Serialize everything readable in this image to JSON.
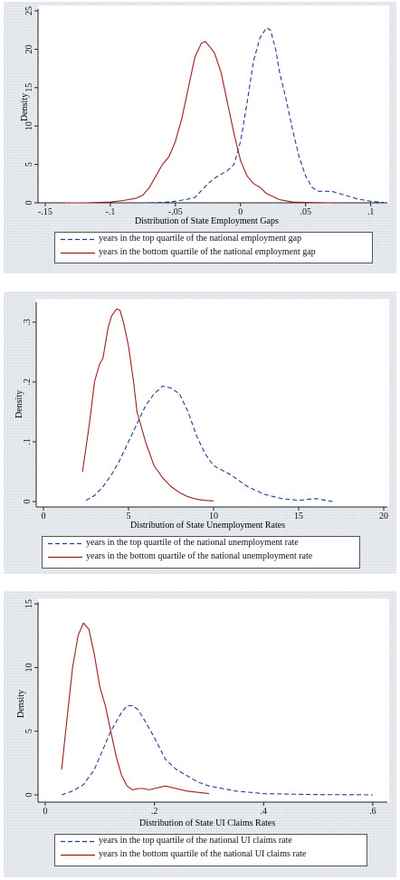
{
  "colors": {
    "top": "#1f3f8f",
    "bottom": "#9a2020"
  },
  "chart_data": [
    {
      "type": "line",
      "xlabel": "Distribution of State Employment Gaps",
      "ylabel": "Density",
      "xlim": [
        -0.15,
        0.11
      ],
      "ylim": [
        0,
        25
      ],
      "xticks": [
        "-.15",
        "-.1",
        "-.05",
        "0",
        ".05",
        ".1"
      ],
      "xtick_values": [
        -0.15,
        -0.1,
        -0.05,
        0,
        0.05,
        0.1
      ],
      "yticks": [
        "0",
        "5",
        "10",
        "15",
        "20",
        "25"
      ],
      "ytick_values": [
        0,
        5,
        10,
        15,
        20,
        25
      ],
      "grid": false,
      "legend_position": "bottom",
      "series": [
        {
          "name": "years in the top quartile of the national employment gap",
          "style": "dashed",
          "x": [
            -0.075,
            -0.06,
            -0.05,
            -0.04,
            -0.035,
            -0.025,
            -0.02,
            -0.01,
            -0.005,
            0.0,
            0.005,
            0.01,
            0.015,
            0.02,
            0.023,
            0.027,
            0.03,
            0.035,
            0.04,
            0.045,
            0.05,
            0.055,
            0.06,
            0.065,
            0.07,
            0.08,
            0.09,
            0.1,
            0.11
          ],
          "y": [
            0,
            0.05,
            0.2,
            0.5,
            0.7,
            2.5,
            3.2,
            4.2,
            5.0,
            8.0,
            13.0,
            18.5,
            21.5,
            22.8,
            22.5,
            20.0,
            17.0,
            13.5,
            9.5,
            6.0,
            3.5,
            2.0,
            1.5,
            1.5,
            1.5,
            1.0,
            0.5,
            0.2,
            0.05
          ]
        },
        {
          "name": "years in the bottom quartile of the national employment gap",
          "style": "solid",
          "x": [
            -0.135,
            -0.12,
            -0.1,
            -0.09,
            -0.08,
            -0.075,
            -0.07,
            -0.065,
            -0.06,
            -0.055,
            -0.05,
            -0.045,
            -0.04,
            -0.035,
            -0.03,
            -0.027,
            -0.023,
            -0.02,
            -0.015,
            -0.01,
            -0.005,
            0.0,
            0.005,
            0.01,
            0.015,
            0.02,
            0.03,
            0.04,
            0.05,
            0.07
          ],
          "y": [
            0,
            0,
            0.1,
            0.3,
            0.6,
            1.0,
            2.0,
            3.5,
            5.0,
            6.0,
            8.0,
            11.0,
            15.0,
            19.0,
            20.8,
            21.0,
            20.2,
            19.5,
            17.0,
            13.0,
            9.0,
            5.5,
            3.5,
            2.5,
            2.0,
            1.2,
            0.4,
            0.1,
            0.05,
            0
          ]
        }
      ]
    },
    {
      "type": "line",
      "xlabel": "Distribution of State Unemployment Rates",
      "ylabel": "Density",
      "xlim": [
        0,
        20
      ],
      "ylim": [
        0,
        0.33
      ],
      "xticks": [
        "0",
        "5",
        "10",
        "15",
        "20"
      ],
      "xtick_values": [
        0,
        5,
        10,
        15,
        20
      ],
      "yticks": [
        "0",
        ".1",
        ".2",
        ".3"
      ],
      "ytick_values": [
        0,
        0.1,
        0.2,
        0.3
      ],
      "grid": false,
      "legend_position": "bottom",
      "series": [
        {
          "name": "years in the top quartile of the national unemployment rate",
          "style": "dashed",
          "x": [
            2.5,
            3.0,
            3.5,
            4.0,
            4.5,
            5.0,
            5.5,
            6.0,
            6.5,
            7.0,
            7.5,
            8.0,
            8.5,
            9.0,
            9.5,
            10.0,
            11.0,
            12.0,
            13.0,
            14.0,
            15.0,
            16.0,
            17.0
          ],
          "y": [
            0.002,
            0.01,
            0.025,
            0.045,
            0.07,
            0.1,
            0.13,
            0.16,
            0.18,
            0.193,
            0.19,
            0.18,
            0.15,
            0.11,
            0.08,
            0.06,
            0.045,
            0.025,
            0.012,
            0.005,
            0.002,
            0.005,
            0.0
          ]
        },
        {
          "name": "years in the bottom quartile of the national unemployment rate",
          "style": "solid",
          "x": [
            2.3,
            2.7,
            3.0,
            3.3,
            3.5,
            3.8,
            4.0,
            4.3,
            4.5,
            4.7,
            5.0,
            5.3,
            5.5,
            6.0,
            6.5,
            7.0,
            7.5,
            8.0,
            8.5,
            9.0,
            9.5,
            10.0
          ],
          "y": [
            0.05,
            0.13,
            0.2,
            0.23,
            0.24,
            0.29,
            0.31,
            0.322,
            0.32,
            0.3,
            0.26,
            0.2,
            0.15,
            0.1,
            0.06,
            0.04,
            0.025,
            0.015,
            0.008,
            0.004,
            0.002,
            0.001
          ]
        }
      ]
    },
    {
      "type": "line",
      "xlabel": "Distribution of State UI Claims Rates",
      "ylabel": "Density",
      "xlim": [
        0,
        0.62
      ],
      "ylim": [
        0,
        15
      ],
      "xticks": [
        "0",
        ".2",
        ".4",
        ".6"
      ],
      "xtick_values": [
        0,
        0.2,
        0.4,
        0.6
      ],
      "yticks": [
        "0",
        "5",
        "10",
        "15"
      ],
      "ytick_values": [
        0,
        5,
        10,
        15
      ],
      "grid": false,
      "legend_position": "bottom",
      "series": [
        {
          "name": "years in the top quartile of the national UI claims rate",
          "style": "dashed",
          "x": [
            0.03,
            0.05,
            0.07,
            0.09,
            0.1,
            0.12,
            0.14,
            0.15,
            0.16,
            0.17,
            0.18,
            0.2,
            0.22,
            0.24,
            0.26,
            0.28,
            0.3,
            0.35,
            0.4,
            0.5,
            0.6
          ],
          "y": [
            0,
            0.3,
            0.8,
            2.0,
            3.0,
            5.0,
            6.5,
            7.0,
            7.0,
            6.7,
            6.0,
            4.5,
            2.8,
            2.0,
            1.5,
            1.0,
            0.7,
            0.3,
            0.1,
            0.02,
            0.01
          ]
        },
        {
          "name": "years in the bottom quartile of the national UI claims rate",
          "style": "solid",
          "x": [
            0.03,
            0.04,
            0.05,
            0.06,
            0.07,
            0.08,
            0.09,
            0.1,
            0.11,
            0.12,
            0.13,
            0.14,
            0.15,
            0.16,
            0.17,
            0.18,
            0.19,
            0.2,
            0.22,
            0.24,
            0.26,
            0.3
          ],
          "y": [
            2.0,
            6.0,
            10.0,
            12.5,
            13.5,
            13.0,
            11.0,
            8.5,
            7.0,
            5.0,
            3.0,
            1.5,
            0.7,
            0.4,
            0.5,
            0.5,
            0.4,
            0.5,
            0.7,
            0.5,
            0.3,
            0.1
          ]
        }
      ]
    }
  ]
}
